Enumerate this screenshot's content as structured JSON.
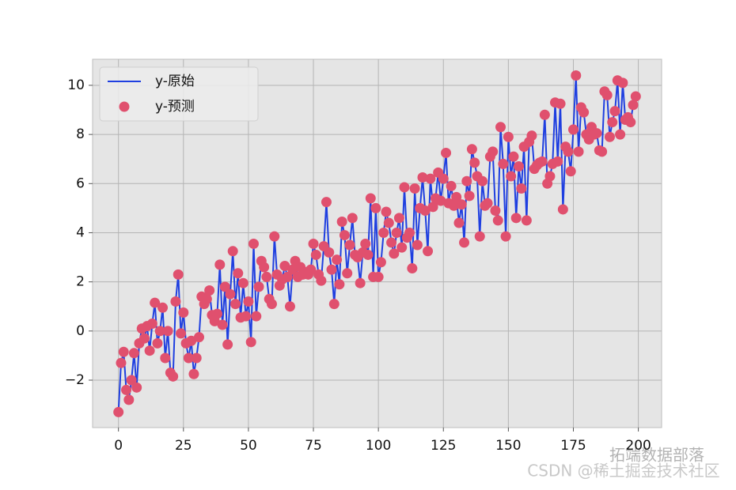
{
  "chart_data": {
    "type": "line",
    "legend": "upper left",
    "grid": true,
    "watermark": [
      "拓端数据部落",
      "CSDN @稀土掘金技术社区"
    ],
    "xlim": [
      -9.95,
      208.95
    ],
    "xticks": [
      0,
      25,
      50,
      75,
      100,
      125,
      150,
      175,
      200
    ],
    "ylim": [
      -3.93,
      11.06
    ],
    "yticks": [
      {
        "value": -2,
        "label": "−2"
      },
      0,
      2,
      4,
      6,
      8,
      10
    ],
    "x": [
      0,
      1,
      2,
      3,
      4,
      5,
      6,
      7,
      8,
      9,
      10,
      11,
      12,
      13,
      14,
      15,
      16,
      17,
      18,
      19,
      20,
      21,
      22,
      23,
      24,
      25,
      26,
      27,
      28,
      29,
      30,
      31,
      32,
      33,
      34,
      35,
      36,
      37,
      38,
      39,
      40,
      41,
      42,
      43,
      44,
      45,
      46,
      47,
      48,
      49,
      50,
      51,
      52,
      53,
      54,
      55,
      56,
      57,
      58,
      59,
      60,
      61,
      62,
      63,
      64,
      65,
      66,
      67,
      68,
      69,
      70,
      71,
      72,
      73,
      74,
      75,
      76,
      77,
      78,
      79,
      80,
      81,
      82,
      83,
      84,
      85,
      86,
      87,
      88,
      89,
      90,
      91,
      92,
      93,
      94,
      95,
      96,
      97,
      98,
      99,
      100,
      101,
      102,
      103,
      104,
      105,
      106,
      107,
      108,
      109,
      110,
      111,
      112,
      113,
      114,
      115,
      116,
      117,
      118,
      119,
      120,
      121,
      122,
      123,
      124,
      125,
      126,
      127,
      128,
      129,
      130,
      131,
      132,
      133,
      134,
      135,
      136,
      137,
      138,
      139,
      140,
      141,
      142,
      143,
      144,
      145,
      146,
      147,
      148,
      149,
      150,
      151,
      152,
      153,
      154,
      155,
      156,
      157,
      158,
      159,
      160,
      161,
      162,
      163,
      164,
      165,
      166,
      167,
      168,
      169,
      170,
      171,
      172,
      173,
      174,
      175,
      176,
      177,
      178,
      179,
      180,
      181,
      182,
      183,
      184,
      185,
      186,
      187,
      188,
      189,
      190,
      191,
      192,
      193,
      194,
      195,
      196,
      197,
      198,
      199
    ],
    "series": [
      {
        "name": "y-原始",
        "color": "#1f3fe0",
        "style": "line",
        "values": [
          -3.3,
          -1.3,
          -0.85,
          -2.4,
          -2.8,
          -2.0,
          -0.9,
          -2.3,
          -0.5,
          0.1,
          -0.3,
          0.2,
          -0.8,
          0.3,
          1.15,
          -0.5,
          0.0,
          0.95,
          -1.1,
          0.0,
          -1.7,
          -1.85,
          1.2,
          2.3,
          -0.1,
          0.75,
          -0.5,
          -1.1,
          -0.4,
          -1.75,
          -1.1,
          -0.25,
          1.4,
          1.1,
          1.3,
          1.65,
          0.65,
          0.4,
          0.7,
          2.7,
          0.25,
          1.8,
          -0.55,
          1.5,
          3.25,
          1.1,
          2.35,
          0.55,
          1.95,
          0.6,
          1.2,
          -0.45,
          3.55,
          0.6,
          1.8,
          2.85,
          2.6,
          2.2,
          1.3,
          1.1,
          3.85,
          2.3,
          1.85,
          2.1,
          2.65,
          2.2,
          1.0,
          2.5,
          2.85,
          2.2,
          2.6,
          2.3,
          2.4,
          2.3,
          2.5,
          3.55,
          3.1,
          2.3,
          2.05,
          3.45,
          5.25,
          3.2,
          2.5,
          1.1,
          2.9,
          1.9,
          4.45,
          3.9,
          2.35,
          3.5,
          4.6,
          3.1,
          3.0,
          1.95,
          3.2,
          3.55,
          3.1,
          5.4,
          2.2,
          5.0,
          2.2,
          2.8,
          4.0,
          4.85,
          4.4,
          3.6,
          3.15,
          4.0,
          4.6,
          3.4,
          5.85,
          3.8,
          4.0,
          2.55,
          5.8,
          3.5,
          5.0,
          6.25,
          4.9,
          3.25,
          6.2,
          5.05,
          5.4,
          6.45,
          5.3,
          6.2,
          7.25,
          5.2,
          5.9,
          5.1,
          5.45,
          4.4,
          5.15,
          3.6,
          6.1,
          5.5,
          7.4,
          6.85,
          6.3,
          3.85,
          6.1,
          5.1,
          5.2,
          7.1,
          7.3,
          4.9,
          4.5,
          8.3,
          6.8,
          3.85,
          7.9,
          6.3,
          7.1,
          4.6,
          6.7,
          5.8,
          7.5,
          4.5,
          7.7,
          7.95,
          6.6,
          6.75,
          6.85,
          6.9,
          8.8,
          6.0,
          6.3,
          6.8,
          9.3,
          6.9,
          9.25,
          4.95,
          7.5,
          7.3,
          6.5,
          8.2,
          10.4,
          7.3,
          9.1,
          8.9,
          8.0,
          7.8,
          8.3,
          8.0,
          8.05,
          7.35,
          7.3,
          9.75,
          9.6,
          7.9,
          8.5,
          8.95,
          10.2,
          8.0,
          10.1,
          8.6,
          8.7,
          8.5,
          9.2,
          9.55
        ]
      },
      {
        "name": "y-预测",
        "color": "#e0506e",
        "style": "scatter",
        "values": [
          -3.3,
          -1.3,
          -0.85,
          -2.4,
          -2.8,
          -2.0,
          -0.9,
          -2.3,
          -0.5,
          0.1,
          -0.3,
          0.2,
          -0.8,
          0.3,
          1.15,
          -0.5,
          0.0,
          0.95,
          -1.1,
          0.0,
          -1.7,
          -1.85,
          1.2,
          2.3,
          -0.1,
          0.75,
          -0.5,
          -1.1,
          -0.4,
          -1.75,
          -1.1,
          -0.25,
          1.4,
          1.1,
          1.3,
          1.65,
          0.65,
          0.4,
          0.7,
          2.7,
          0.25,
          1.8,
          -0.55,
          1.5,
          3.25,
          1.1,
          2.35,
          0.55,
          1.95,
          0.6,
          1.2,
          -0.45,
          3.55,
          0.6,
          1.8,
          2.85,
          2.6,
          2.2,
          1.3,
          1.1,
          3.85,
          2.3,
          1.85,
          2.1,
          2.65,
          2.2,
          1.0,
          2.5,
          2.85,
          2.2,
          2.6,
          2.3,
          2.4,
          2.3,
          2.5,
          3.55,
          3.1,
          2.3,
          2.05,
          3.45,
          5.25,
          3.2,
          2.5,
          1.1,
          2.9,
          1.9,
          4.45,
          3.9,
          2.35,
          3.5,
          4.6,
          3.1,
          3.0,
          1.95,
          3.2,
          3.55,
          3.1,
          5.4,
          2.2,
          5.0,
          2.2,
          2.8,
          4.0,
          4.85,
          4.4,
          3.6,
          3.15,
          4.0,
          4.6,
          3.4,
          5.85,
          3.8,
          4.0,
          2.55,
          5.8,
          3.5,
          5.0,
          6.25,
          4.9,
          3.25,
          6.2,
          5.05,
          5.4,
          6.45,
          5.3,
          6.2,
          7.25,
          5.2,
          5.9,
          5.1,
          5.45,
          4.4,
          5.15,
          3.6,
          6.1,
          5.5,
          7.4,
          6.85,
          6.3,
          3.85,
          6.1,
          5.1,
          5.2,
          7.1,
          7.3,
          4.9,
          4.5,
          8.3,
          6.8,
          3.85,
          7.9,
          6.3,
          7.1,
          4.6,
          6.7,
          5.8,
          7.5,
          4.5,
          7.7,
          7.95,
          6.6,
          6.75,
          6.85,
          6.9,
          8.8,
          6.0,
          6.3,
          6.8,
          9.3,
          6.9,
          9.25,
          4.95,
          7.5,
          7.3,
          6.5,
          8.2,
          10.4,
          7.3,
          9.1,
          8.9,
          8.0,
          7.8,
          8.3,
          8.0,
          8.05,
          7.35,
          7.3,
          9.75,
          9.6,
          7.9,
          8.5,
          8.95,
          10.2,
          8.0,
          10.1,
          8.6,
          8.7,
          8.5,
          9.2,
          9.55
        ]
      }
    ]
  }
}
